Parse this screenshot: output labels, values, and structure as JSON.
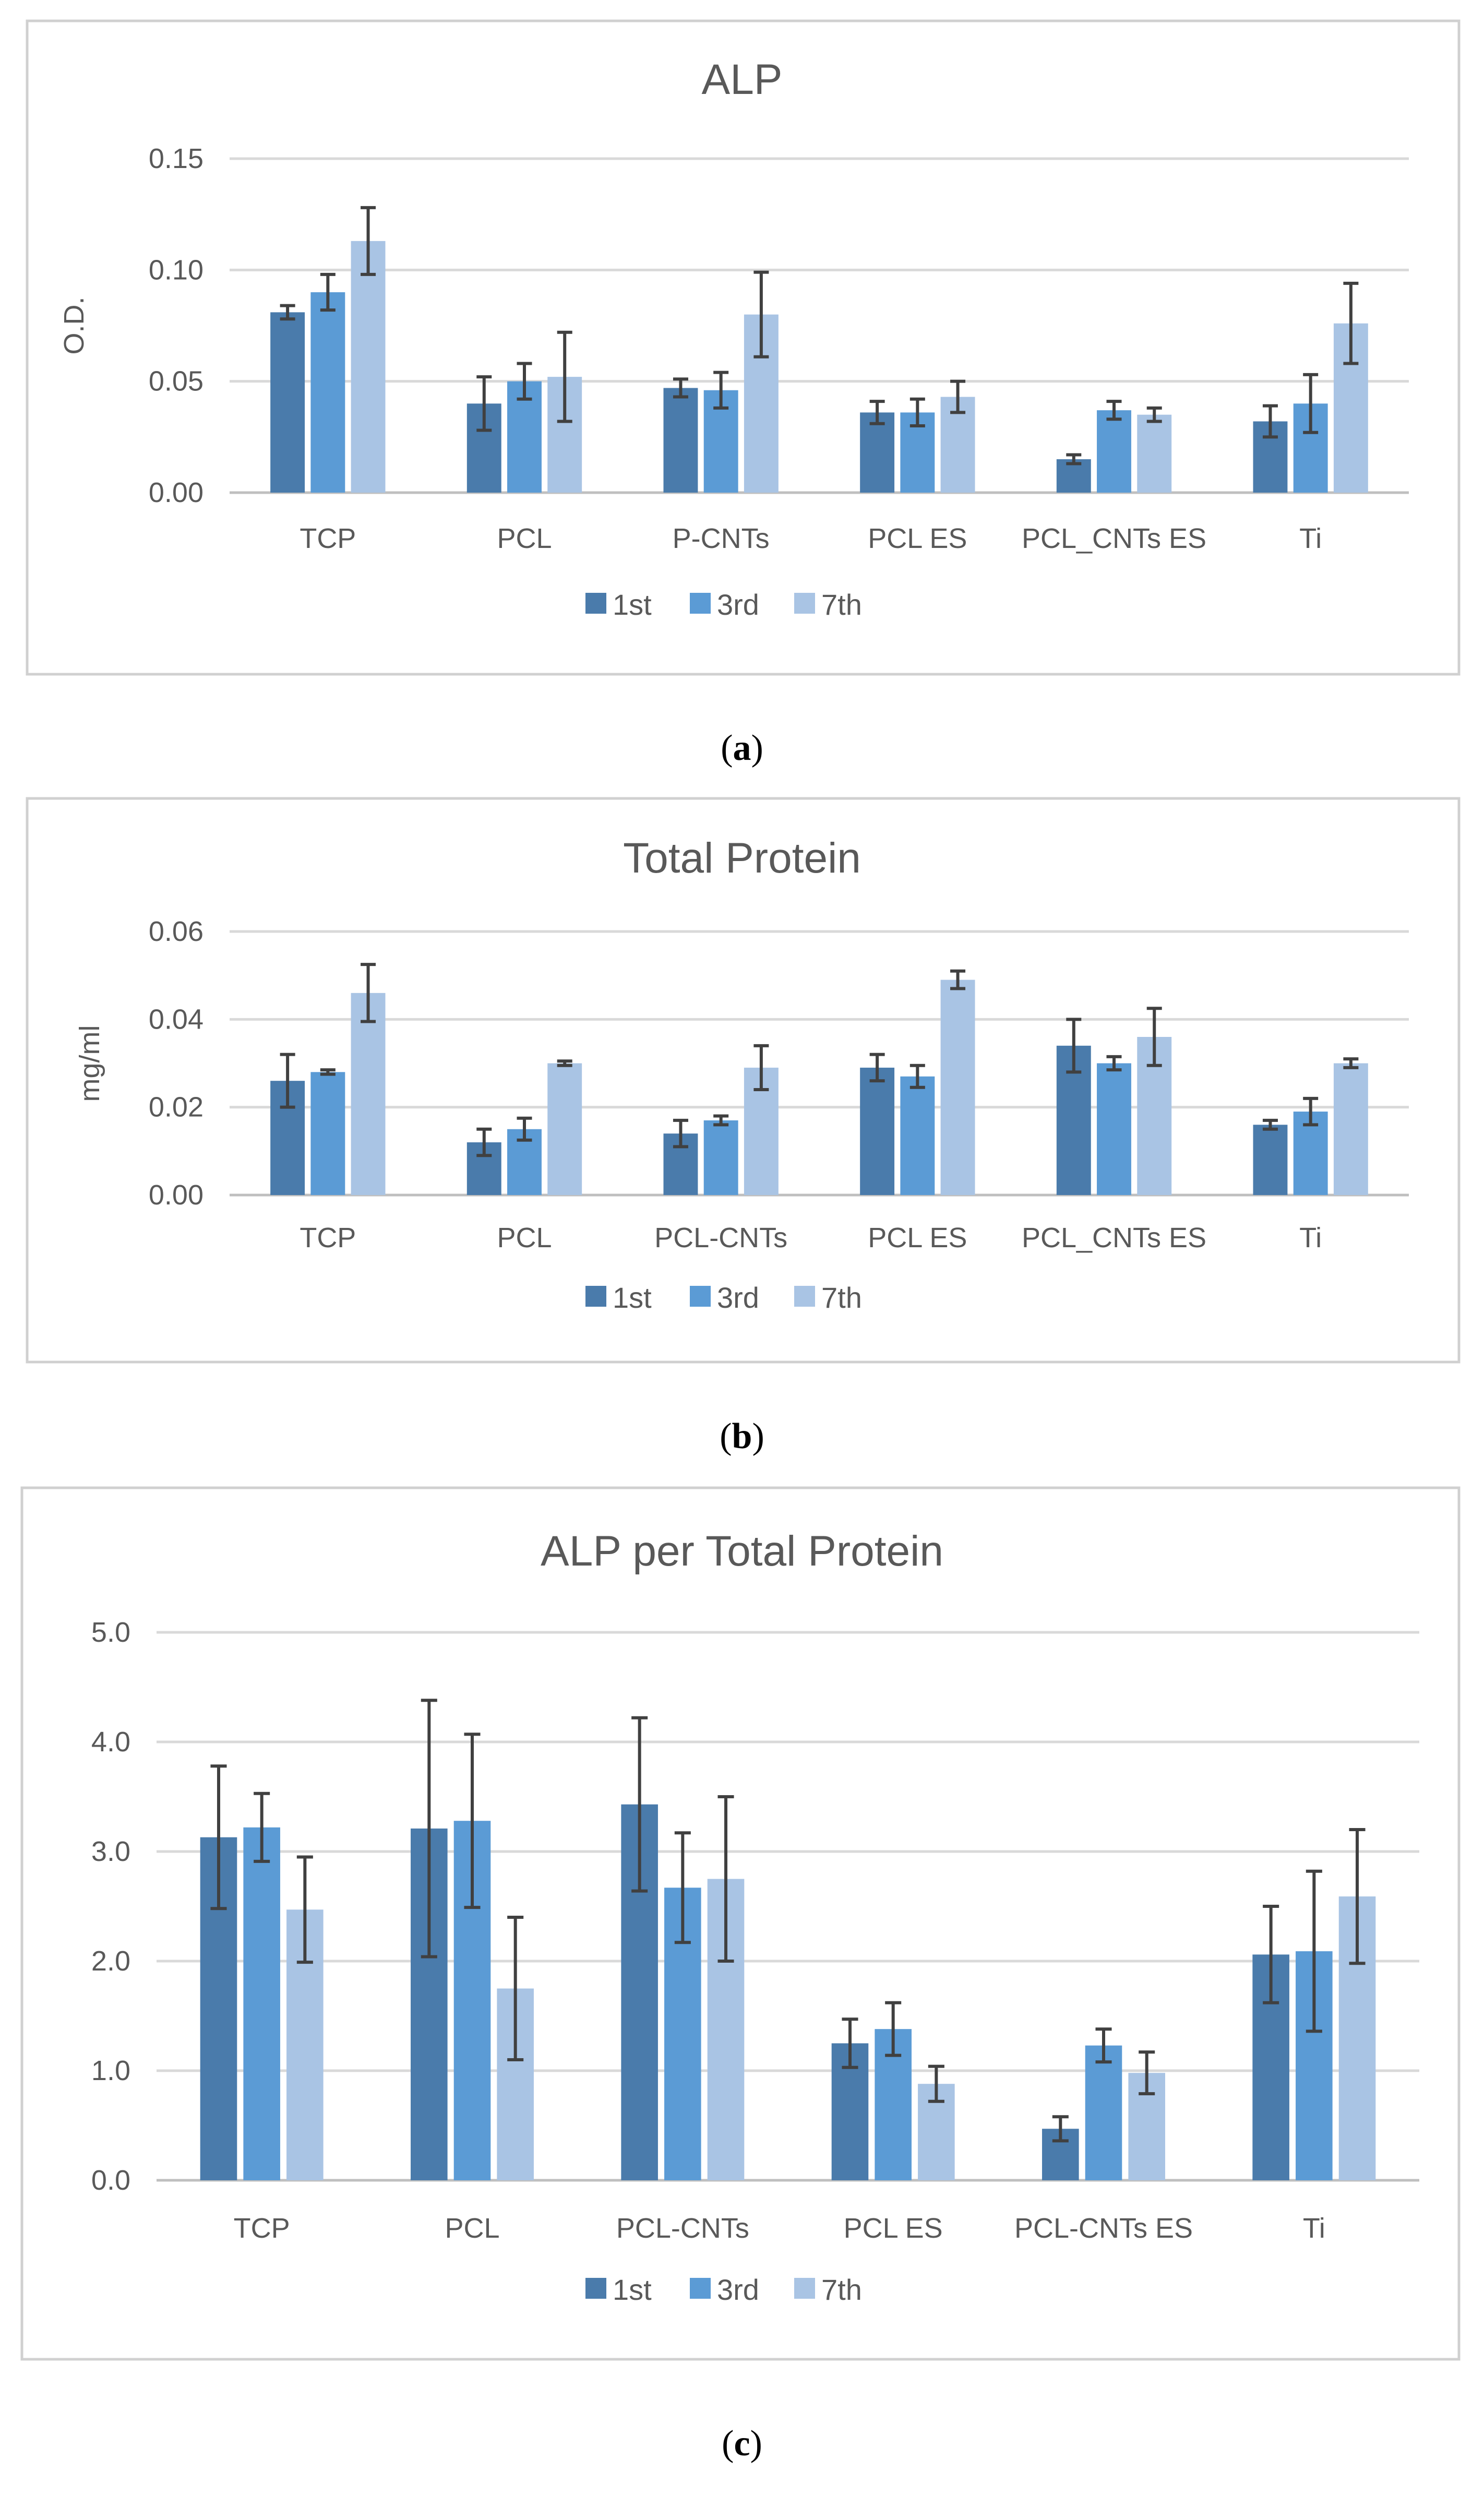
{
  "colors": {
    "1st": "#4a7bab",
    "3rd": "#5b9bd5",
    "7th": "#a9c4e4"
  },
  "chart_data": [
    {
      "type": "bar",
      "panel": "a",
      "title": "ALP",
      "ylabel": "O.D.",
      "ylim": [
        0,
        0.15
      ],
      "yticks": [
        "0.00",
        "0.05",
        "0.10",
        "0.15"
      ],
      "ytick_values": [
        0,
        0.05,
        0.1,
        0.15
      ],
      "categories": [
        "TCP",
        "PCL",
        "P-CNTs",
        "PCL ES",
        "PCL_CNTs ES",
        "Ti"
      ],
      "series": [
        {
          "name": "1st",
          "values": [
            0.081,
            0.04,
            0.047,
            0.036,
            0.015,
            0.032
          ],
          "errors": [
            0.003,
            0.012,
            0.004,
            0.005,
            0.002,
            0.007
          ]
        },
        {
          "name": "3rd",
          "values": [
            0.09,
            0.05,
            0.046,
            0.036,
            0.037,
            0.04
          ],
          "errors": [
            0.008,
            0.008,
            0.008,
            0.006,
            0.004,
            0.013
          ]
        },
        {
          "name": "7th",
          "values": [
            0.113,
            0.052,
            0.08,
            0.043,
            0.035,
            0.076
          ],
          "errors": [
            0.015,
            0.02,
            0.019,
            0.007,
            0.003,
            0.018
          ]
        }
      ],
      "legend": "bottom",
      "grid": true
    },
    {
      "type": "bar",
      "panel": "b",
      "title": "Total Protein",
      "ylabel": "mg/ml",
      "ylim": [
        0,
        0.06
      ],
      "yticks": [
        "0.00",
        "0.02",
        "0.04",
        "0.06"
      ],
      "ytick_values": [
        0,
        0.02,
        0.04,
        0.06
      ],
      "categories": [
        "TCP",
        "PCL",
        "PCL-CNTs",
        "PCL ES",
        "PCL_CNTs ES",
        "Ti"
      ],
      "series": [
        {
          "name": "1st",
          "values": [
            0.026,
            0.012,
            0.014,
            0.029,
            0.034,
            0.016
          ],
          "errors": [
            0.006,
            0.003,
            0.003,
            0.003,
            0.006,
            0.001
          ]
        },
        {
          "name": "3rd",
          "values": [
            0.028,
            0.015,
            0.017,
            0.027,
            0.03,
            0.019
          ],
          "errors": [
            0.0005,
            0.0025,
            0.001,
            0.0025,
            0.0015,
            0.003
          ]
        },
        {
          "name": "7th",
          "values": [
            0.046,
            0.03,
            0.029,
            0.049,
            0.036,
            0.03
          ],
          "errors": [
            0.0065,
            0.0005,
            0.005,
            0.002,
            0.0065,
            0.001
          ]
        }
      ],
      "legend": "bottom",
      "grid": true
    },
    {
      "type": "bar",
      "panel": "c",
      "title": "ALP per Total Protein",
      "ylabel": "",
      "ylim": [
        0,
        5.0
      ],
      "yticks": [
        "0.0",
        "1.0",
        "2.0",
        "3.0",
        "4.0",
        "5.0"
      ],
      "ytick_values": [
        0,
        1,
        2,
        3,
        4,
        5
      ],
      "categories": [
        "TCP",
        "PCL",
        "PCL-CNTs",
        "PCL ES",
        "PCL-CNTs ES",
        "Ti"
      ],
      "series": [
        {
          "name": "1st",
          "values": [
            3.13,
            3.21,
            3.43,
            1.25,
            0.47,
            2.06
          ],
          "errors": [
            0.65,
            1.17,
            0.79,
            0.22,
            0.11,
            0.44
          ]
        },
        {
          "name": "3rd",
          "values": [
            3.22,
            3.28,
            2.67,
            1.38,
            1.23,
            2.09
          ],
          "errors": [
            0.31,
            0.79,
            0.5,
            0.24,
            0.15,
            0.73
          ]
        },
        {
          "name": "7th",
          "values": [
            2.47,
            1.75,
            2.75,
            0.88,
            0.98,
            2.59
          ],
          "errors": [
            0.48,
            0.65,
            0.75,
            0.16,
            0.19,
            0.61
          ]
        }
      ],
      "legend": "bottom",
      "grid": true
    }
  ],
  "captions": [
    {
      "open": "(",
      "letter": "a",
      "close": ")"
    },
    {
      "open": "(",
      "letter": "b",
      "close": ")"
    },
    {
      "open": "(",
      "letter": "c",
      "close": ")"
    }
  ]
}
